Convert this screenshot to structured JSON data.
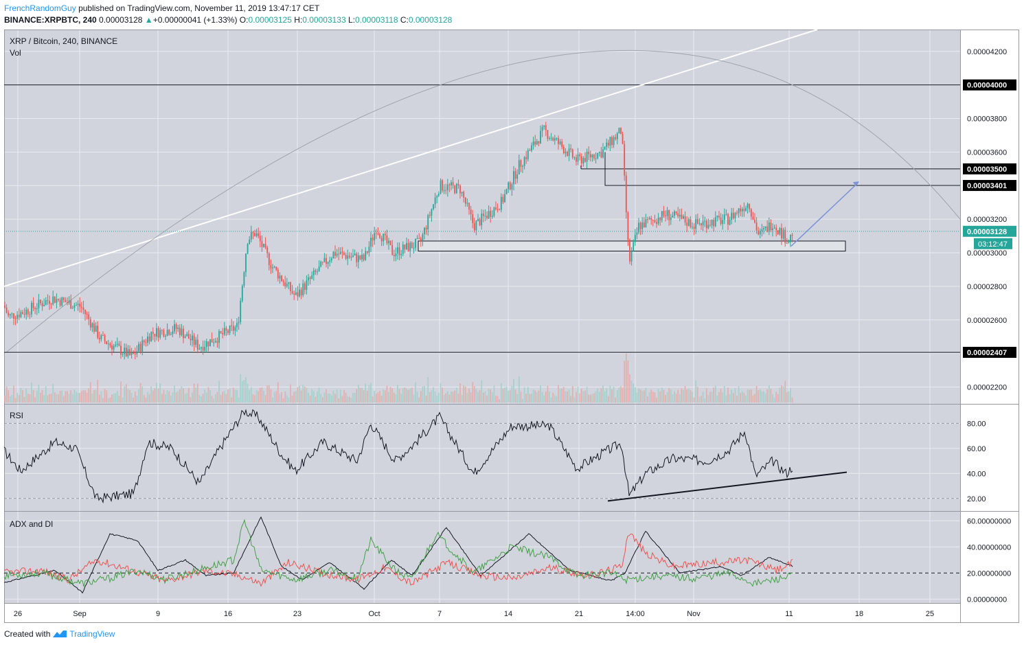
{
  "header": {
    "author": "FrenchRandomGuy",
    "published": "published on TradingView.com, November 11, 2019 13:47:17 CET",
    "symbol": "BINANCE:XRPBTC, 240",
    "last": "0.00003128",
    "change": "+0.00000041 (+1.33%)",
    "o_label": "O:",
    "o": "0.00003125",
    "h_label": "H:",
    "h": "0.00003133",
    "l_label": "L:",
    "l": "0.00003118",
    "c_label": "C:",
    "c": "0.00003128"
  },
  "panes": {
    "main_title": "XRP / Bitcoin, 240, BINANCE",
    "vol_label": "Vol",
    "rsi_label": "RSI",
    "adx_label": "ADX and DI"
  },
  "price_axis": {
    "ticks": [
      "0.00004200",
      "0.00003800",
      "0.00003600",
      "0.00003200",
      "0.00003000",
      "0.00002800",
      "0.00002600",
      "0.00002200"
    ],
    "levels": [
      "0.00004000",
      "0.00003500",
      "0.00003401",
      "0.00002407"
    ],
    "current": "0.00003128",
    "countdown": "03:12:47"
  },
  "rsi_axis": {
    "ticks": [
      "80.00",
      "60.00",
      "40.00",
      "20.00"
    ]
  },
  "adx_axis": {
    "ticks": [
      "60.00000000",
      "40.00000000",
      "20.00000000",
      "0.00000000"
    ]
  },
  "time_axis": [
    "26",
    "Sep",
    "9",
    "16",
    "23",
    "Oct",
    "7",
    "14",
    "21",
    "14:00",
    "Nov",
    "11",
    "18",
    "25"
  ],
  "footer": {
    "created": "Created with",
    "brand": "TradingView"
  },
  "colors": {
    "up": "#26a69a",
    "down": "#ef5350",
    "pane_bg": "#d1d4dc",
    "arrow": "#7b93db"
  },
  "chart_data": {
    "type": "candlestick",
    "symbol": "XRP / Bitcoin",
    "timeframe": "240",
    "ylim": [
      2.1e-05,
      4.33e-05
    ],
    "horizontal_levels": [
      4e-05,
      3.5e-05,
      3.401e-05,
      2.407e-05
    ],
    "current_price": 3.128e-05,
    "close_path": [
      [
        0,
        2.75e-05
      ],
      [
        12,
        2.62e-05
      ],
      [
        36,
        2.65e-05
      ],
      [
        76,
        2.73e-05
      ],
      [
        118,
        2.68e-05
      ],
      [
        146,
        2.49e-05
      ],
      [
        192,
        2.38e-05
      ],
      [
        220,
        2.52e-05
      ],
      [
        258,
        2.55e-05
      ],
      [
        290,
        2.44e-05
      ],
      [
        346,
        2.56e-05
      ],
      [
        360,
        3.08e-05
      ],
      [
        372,
        3.12e-05
      ],
      [
        396,
        2.92e-05
      ],
      [
        430,
        2.74e-05
      ],
      [
        460,
        2.88e-05
      ],
      [
        486,
        3e-05
      ],
      [
        530,
        2.96e-05
      ],
      [
        548,
        3.15e-05
      ],
      [
        572,
        3e-05
      ],
      [
        612,
        3.06e-05
      ],
      [
        640,
        3.4e-05
      ],
      [
        670,
        3.38e-05
      ],
      [
        690,
        3.16e-05
      ],
      [
        730,
        3.3e-05
      ],
      [
        756,
        3.52e-05
      ],
      [
        792,
        3.73e-05
      ],
      [
        840,
        3.55e-05
      ],
      [
        876,
        3.6e-05
      ],
      [
        905,
        3.73e-05
      ],
      [
        916,
        2.94e-05
      ],
      [
        930,
        3.16e-05
      ],
      [
        970,
        3.23e-05
      ],
      [
        1010,
        3.17e-05
      ],
      [
        1060,
        3.2e-05
      ],
      [
        1090,
        3.3e-05
      ],
      [
        1105,
        3.1e-05
      ],
      [
        1125,
        3.18e-05
      ],
      [
        1148,
        3.07e-05
      ],
      [
        1155,
        3.13e-05
      ]
    ],
    "rsi": {
      "ylim": [
        10,
        95
      ],
      "bands": [
        80,
        20
      ],
      "values": [
        [
          0,
          62
        ],
        [
          30,
          42
        ],
        [
          80,
          65
        ],
        [
          110,
          60
        ],
        [
          140,
          20
        ],
        [
          170,
          22
        ],
        [
          195,
          24
        ],
        [
          215,
          65
        ],
        [
          250,
          60
        ],
        [
          290,
          32
        ],
        [
          320,
          60
        ],
        [
          356,
          90
        ],
        [
          376,
          85
        ],
        [
          410,
          55
        ],
        [
          430,
          42
        ],
        [
          470,
          65
        ],
        [
          520,
          50
        ],
        [
          540,
          80
        ],
        [
          575,
          50
        ],
        [
          600,
          62
        ],
        [
          640,
          85
        ],
        [
          690,
          40
        ],
        [
          745,
          78
        ],
        [
          800,
          78
        ],
        [
          840,
          44
        ],
        [
          880,
          57
        ],
        [
          905,
          64
        ],
        [
          916,
          22
        ],
        [
          940,
          40
        ],
        [
          980,
          52
        ],
        [
          1030,
          50
        ],
        [
          1060,
          58
        ],
        [
          1085,
          74
        ],
        [
          1100,
          38
        ],
        [
          1125,
          50
        ],
        [
          1145,
          40
        ],
        [
          1155,
          46
        ]
      ],
      "trendline": [
        [
          885,
          18
        ],
        [
          1233,
          41
        ]
      ]
    },
    "adx_di": {
      "ylim": [
        -3,
        67
      ],
      "dashed_level": 20,
      "series": [
        {
          "color": "#131722",
          "values": [
            [
              0,
              12
            ],
            [
              80,
              22
            ],
            [
              120,
              5
            ],
            [
              160,
              50
            ],
            [
              200,
              45
            ],
            [
              230,
              22
            ],
            [
              270,
              30
            ],
            [
              300,
              18
            ],
            [
              340,
              20
            ],
            [
              380,
              63
            ],
            [
              410,
              25
            ],
            [
              440,
              15
            ],
            [
              480,
              28
            ],
            [
              530,
              8
            ],
            [
              570,
              30
            ],
            [
              600,
              18
            ],
            [
              650,
              55
            ],
            [
              700,
              18
            ],
            [
              770,
              50
            ],
            [
              830,
              22
            ],
            [
              890,
              14
            ],
            [
              910,
              20
            ],
            [
              940,
              52
            ],
            [
              990,
              20
            ],
            [
              1050,
              25
            ],
            [
              1080,
              18
            ],
            [
              1120,
              32
            ],
            [
              1155,
              25
            ]
          ]
        },
        {
          "color": "#ef5350",
          "values": [
            [
              0,
              20
            ],
            [
              60,
              22
            ],
            [
              100,
              15
            ],
            [
              140,
              30
            ],
            [
              180,
              24
            ],
            [
              240,
              14
            ],
            [
              300,
              22
            ],
            [
              350,
              18
            ],
            [
              380,
              12
            ],
            [
              420,
              28
            ],
            [
              470,
              20
            ],
            [
              520,
              15
            ],
            [
              560,
              24
            ],
            [
              600,
              12
            ],
            [
              650,
              28
            ],
            [
              700,
              18
            ],
            [
              750,
              16
            ],
            [
              800,
              24
            ],
            [
              860,
              18
            ],
            [
              905,
              25
            ],
            [
              915,
              52
            ],
            [
              940,
              35
            ],
            [
              980,
              25
            ],
            [
              1040,
              28
            ],
            [
              1090,
              30
            ],
            [
              1130,
              22
            ],
            [
              1155,
              28
            ]
          ]
        },
        {
          "color": "#43a047",
          "values": [
            [
              0,
              18
            ],
            [
              60,
              20
            ],
            [
              120,
              12
            ],
            [
              160,
              16
            ],
            [
              200,
              22
            ],
            [
              240,
              15
            ],
            [
              300,
              24
            ],
            [
              340,
              30
            ],
            [
              356,
              60
            ],
            [
              380,
              22
            ],
            [
              430,
              15
            ],
            [
              480,
              22
            ],
            [
              520,
              16
            ],
            [
              540,
              45
            ],
            [
              575,
              22
            ],
            [
              600,
              15
            ],
            [
              635,
              50
            ],
            [
              690,
              20
            ],
            [
              745,
              40
            ],
            [
              800,
              32
            ],
            [
              840,
              18
            ],
            [
              890,
              20
            ],
            [
              910,
              15
            ],
            [
              960,
              18
            ],
            [
              1010,
              16
            ],
            [
              1060,
              20
            ],
            [
              1100,
              12
            ],
            [
              1155,
              18
            ]
          ]
        }
      ]
    },
    "boxes": [
      {
        "x": [
          609,
          1231
        ],
        "y": [
          3.01e-05,
          3.07e-05
        ]
      }
    ]
  }
}
